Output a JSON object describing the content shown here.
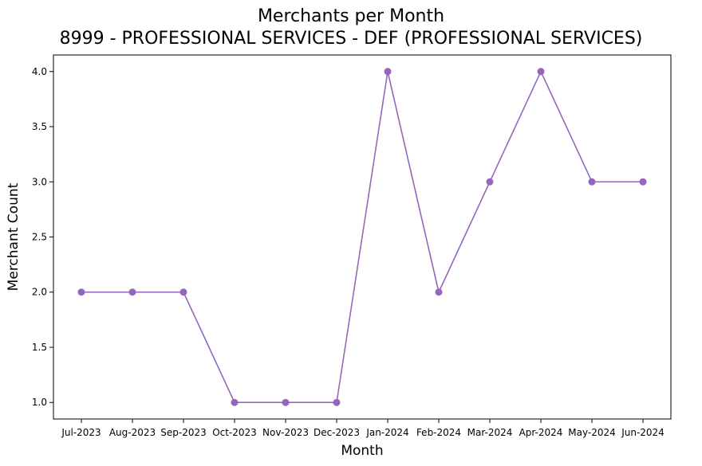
{
  "chart_data": {
    "type": "line",
    "title": "Merchants per Month",
    "subtitle": "8999 - PROFESSIONAL SERVICES - DEF (PROFESSIONAL SERVICES)",
    "xlabel": "Month",
    "ylabel": "Merchant Count",
    "categories": [
      "Jul-2023",
      "Aug-2023",
      "Sep-2023",
      "Oct-2023",
      "Nov-2023",
      "Dec-2023",
      "Jan-2024",
      "Feb-2024",
      "Mar-2024",
      "Apr-2024",
      "May-2024",
      "Jun-2024"
    ],
    "series": [
      {
        "values": [
          2,
          2,
          2,
          1,
          1,
          1,
          4,
          2,
          3,
          4,
          3,
          3
        ],
        "color": "#9467bd"
      }
    ],
    "ylim": [
      0.85,
      4.15
    ],
    "yticks": [
      "1.0",
      "1.5",
      "2.0",
      "2.5",
      "3.0",
      "3.5",
      "4.0"
    ],
    "grid": false,
    "legend": "none",
    "markers": "circle"
  }
}
